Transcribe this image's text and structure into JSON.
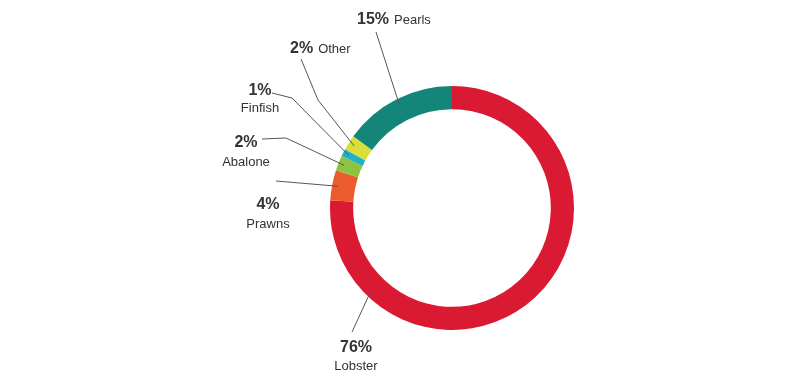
{
  "chart_data": {
    "type": "doughnut",
    "categories": [
      "Lobster",
      "Prawns",
      "Abalone",
      "Finfish",
      "Other",
      "Pearls"
    ],
    "values": [
      76,
      4,
      2,
      1,
      2,
      15
    ],
    "value_labels": [
      "76%",
      "4%",
      "2%",
      "1%",
      "2%",
      "15%"
    ],
    "colors": [
      "#da1a32",
      "#ec5b2c",
      "#8cc43f",
      "#20b1c8",
      "#d9de3b",
      "#138579"
    ],
    "data_labels": true
  }
}
